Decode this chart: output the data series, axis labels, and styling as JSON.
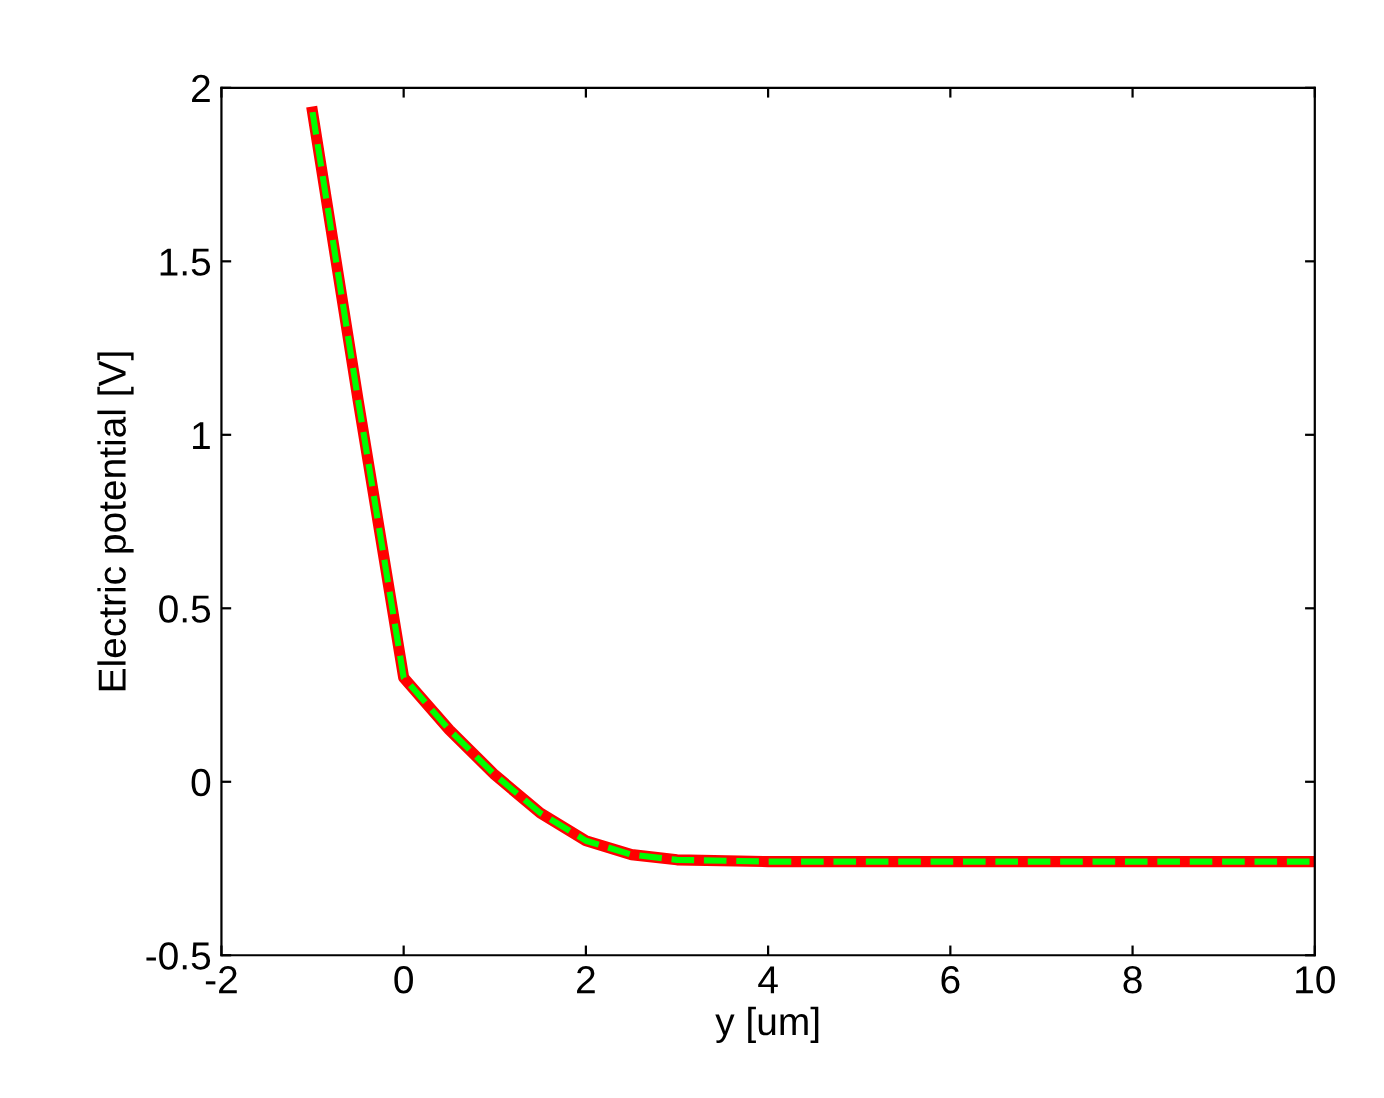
{
  "chart_data": {
    "type": "line",
    "xlabel": "y [um]",
    "ylabel": "Electric potential [V]",
    "x": [
      -1,
      -0.5,
      0,
      0.5,
      1,
      1.5,
      2,
      2.5,
      3,
      4,
      6,
      8,
      10
    ],
    "series": [
      {
        "color": "#ff0000",
        "line_style": "solid",
        "values": [
          1.93,
          1.1,
          0.3,
          0.15,
          0.02,
          -0.09,
          -0.17,
          -0.21,
          -0.225,
          -0.23,
          -0.23,
          -0.23,
          -0.23
        ]
      },
      {
        "color": "#00ff00",
        "line_style": "dashed",
        "values": [
          1.93,
          1.1,
          0.3,
          0.15,
          0.02,
          -0.09,
          -0.17,
          -0.21,
          -0.225,
          -0.23,
          -0.23,
          -0.23,
          -0.23
        ]
      }
    ],
    "xlim": [
      -2,
      10
    ],
    "xticks": [
      -2,
      0,
      2,
      4,
      6,
      8,
      10
    ],
    "ylim": [
      -0.5,
      2
    ],
    "yticks": [
      -0.5,
      0,
      0.5,
      1,
      1.5,
      2
    ],
    "grid": false,
    "marker": "none"
  }
}
